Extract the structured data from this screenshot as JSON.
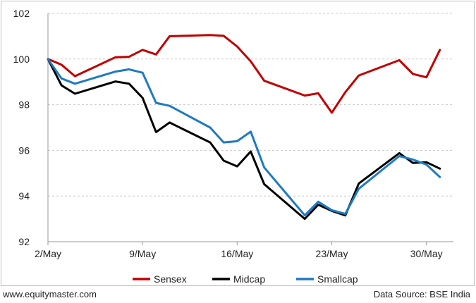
{
  "chart_data": {
    "type": "line",
    "xlabel": "",
    "ylabel": "",
    "ylim": [
      92,
      102
    ],
    "y_ticks": [
      92,
      94,
      96,
      98,
      100,
      102
    ],
    "x_ticks": [
      {
        "day": 0,
        "label": "2/May"
      },
      {
        "day": 7,
        "label": "9/May"
      },
      {
        "day": 14,
        "label": "16/May"
      },
      {
        "day": 21,
        "label": "23/May"
      },
      {
        "day": 28,
        "label": "30/May"
      }
    ],
    "xlim": [
      0,
      30
    ],
    "grid": true,
    "legend": "bottom",
    "series": [
      {
        "name": "Sensex",
        "color": "#c00000",
        "points": [
          [
            0,
            100.0
          ],
          [
            1,
            99.75
          ],
          [
            2,
            99.25
          ],
          [
            5,
            100.08
          ],
          [
            6,
            100.1
          ],
          [
            7,
            100.4
          ],
          [
            8,
            100.2
          ],
          [
            9,
            101.0
          ],
          [
            12,
            101.05
          ],
          [
            13,
            101.02
          ],
          [
            14,
            100.55
          ],
          [
            15,
            99.9
          ],
          [
            16,
            99.05
          ],
          [
            19,
            98.4
          ],
          [
            20,
            98.5
          ],
          [
            21,
            97.65
          ],
          [
            22,
            98.55
          ],
          [
            23,
            99.28
          ],
          [
            26,
            99.95
          ],
          [
            27,
            99.35
          ],
          [
            28,
            99.2
          ],
          [
            29,
            100.4
          ]
        ]
      },
      {
        "name": "Midcap",
        "color": "#000000",
        "points": [
          [
            0,
            100.0
          ],
          [
            1,
            98.85
          ],
          [
            2,
            98.48
          ],
          [
            5,
            99.02
          ],
          [
            6,
            98.92
          ],
          [
            7,
            98.3
          ],
          [
            8,
            96.8
          ],
          [
            9,
            97.22
          ],
          [
            12,
            96.35
          ],
          [
            13,
            95.55
          ],
          [
            14,
            95.3
          ],
          [
            15,
            95.95
          ],
          [
            16,
            94.52
          ],
          [
            19,
            93.0
          ],
          [
            20,
            93.62
          ],
          [
            21,
            93.35
          ],
          [
            22,
            93.15
          ],
          [
            23,
            94.55
          ],
          [
            26,
            95.88
          ],
          [
            27,
            95.45
          ],
          [
            28,
            95.48
          ],
          [
            29,
            95.2
          ]
        ]
      },
      {
        "name": "Smallcap",
        "color": "#1f7ac0",
        "points": [
          [
            0,
            100.0
          ],
          [
            1,
            99.15
          ],
          [
            2,
            98.92
          ],
          [
            5,
            99.45
          ],
          [
            6,
            99.55
          ],
          [
            7,
            99.4
          ],
          [
            8,
            98.08
          ],
          [
            9,
            97.95
          ],
          [
            12,
            97.0
          ],
          [
            13,
            96.35
          ],
          [
            14,
            96.4
          ],
          [
            15,
            96.82
          ],
          [
            16,
            95.25
          ],
          [
            19,
            93.15
          ],
          [
            20,
            93.75
          ],
          [
            21,
            93.38
          ],
          [
            22,
            93.22
          ],
          [
            23,
            94.32
          ],
          [
            26,
            95.75
          ],
          [
            27,
            95.6
          ],
          [
            28,
            95.38
          ],
          [
            29,
            94.83
          ]
        ]
      }
    ]
  },
  "footer": {
    "left": "www.equitymaster.com",
    "right": "Data Source: BSE India"
  }
}
